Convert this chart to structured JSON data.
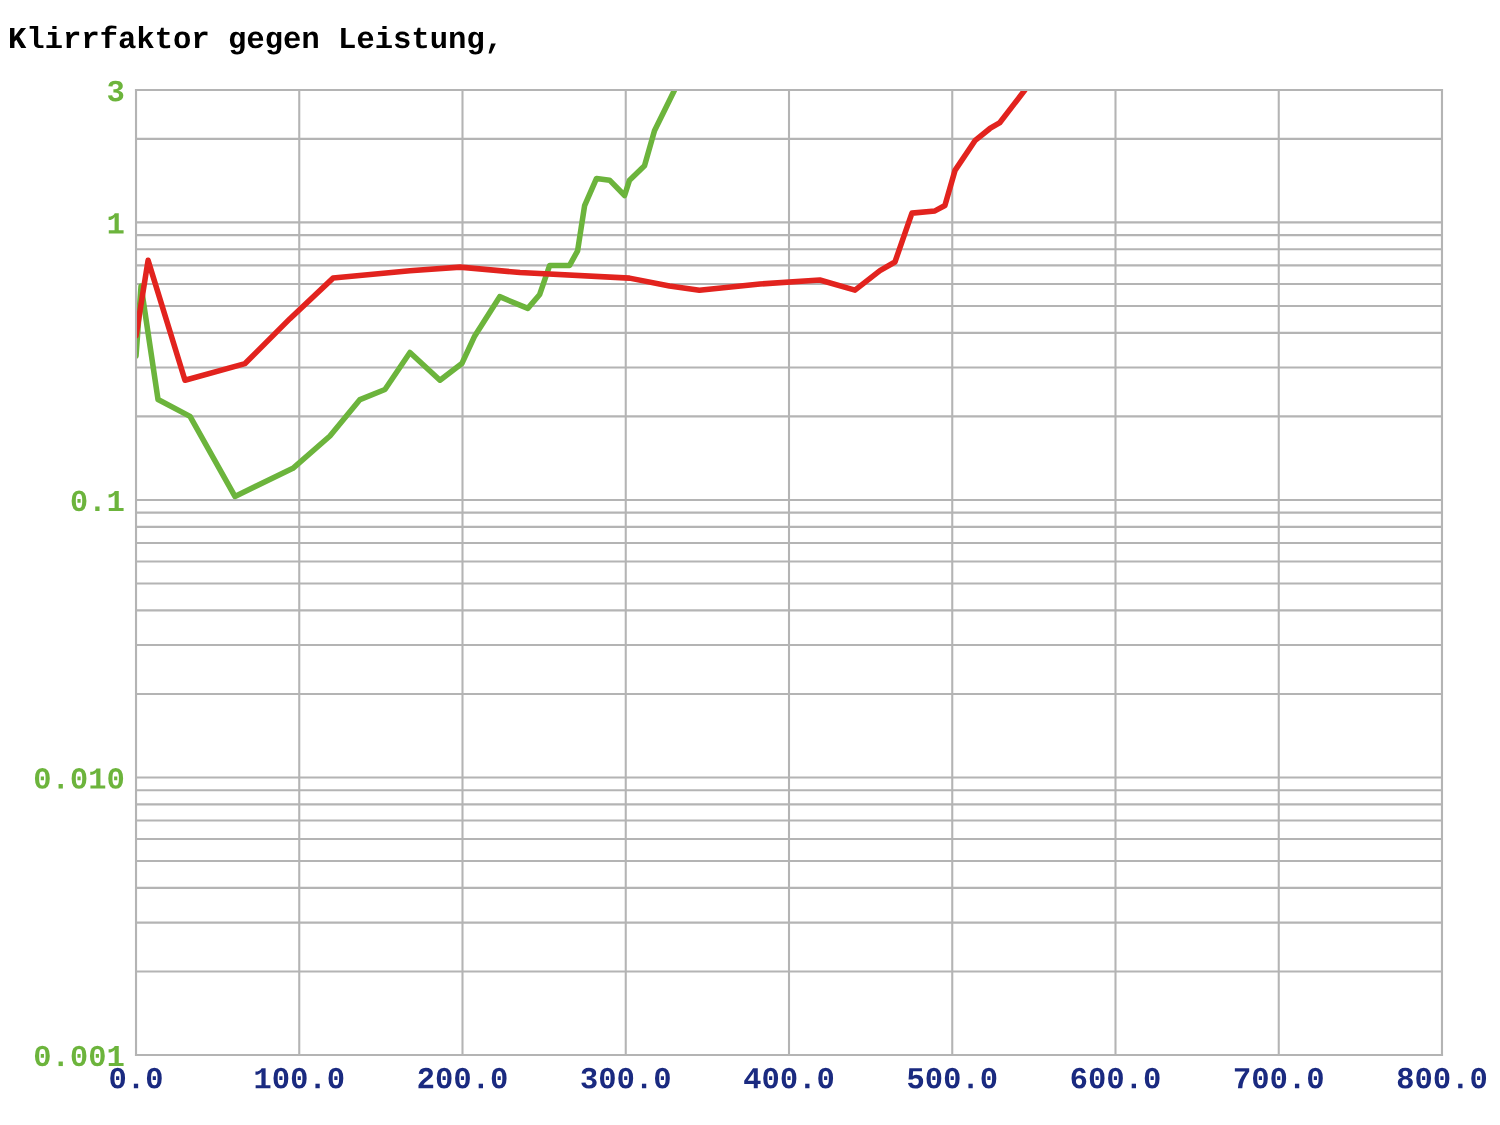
{
  "chart_data": {
    "type": "line",
    "title": "Klirrfaktor gegen Leistung,",
    "log": "y",
    "grid": true,
    "line_style": "solid",
    "marker": "none",
    "xlim": [
      0,
      800
    ],
    "xticks": [
      {
        "value": 0,
        "label": "0.0"
      },
      {
        "value": 100,
        "label": "100.0"
      },
      {
        "value": 200,
        "label": "200.0"
      },
      {
        "value": 300,
        "label": "300.0"
      },
      {
        "value": 400,
        "label": "400.0"
      },
      {
        "value": 500,
        "label": "500.0"
      },
      {
        "value": 600,
        "label": "600.0"
      },
      {
        "value": 700,
        "label": "700.0"
      },
      {
        "value": 800,
        "label": "800.0"
      }
    ],
    "ylim": [
      0.001,
      3
    ],
    "yticks": [
      0.001,
      {
        "value": 0.002,
        "label": null
      },
      {
        "value": 0.003,
        "label": null
      },
      {
        "value": 0.004,
        "label": null
      },
      {
        "value": 0.005,
        "label": null
      },
      {
        "value": 0.006,
        "label": null
      },
      {
        "value": 0.007,
        "label": null
      },
      {
        "value": 0.008,
        "label": null
      },
      {
        "value": 0.009,
        "label": null
      },
      {
        "value": 0.01,
        "label": "0.010"
      },
      {
        "value": 0.02,
        "label": null
      },
      {
        "value": 0.03,
        "label": null
      },
      {
        "value": 0.04,
        "label": null
      },
      {
        "value": 0.05,
        "label": null
      },
      {
        "value": 0.06,
        "label": null
      },
      {
        "value": 0.07,
        "label": null
      },
      {
        "value": 0.08,
        "label": null
      },
      {
        "value": 0.09,
        "label": null
      },
      0.1,
      {
        "value": 0.2,
        "label": null
      },
      {
        "value": 0.3,
        "label": null
      },
      {
        "value": 0.4,
        "label": null
      },
      {
        "value": 0.5,
        "label": null
      },
      {
        "value": 0.6,
        "label": null
      },
      {
        "value": 0.7,
        "label": null
      },
      {
        "value": 0.8,
        "label": null
      },
      {
        "value": 0.9,
        "label": null
      },
      1,
      {
        "value": 2,
        "label": null
      },
      3
    ],
    "series": [
      {
        "color": "#6cb43c",
        "x": [
          0,
          3.1,
          13.5,
          33.1,
          60.6,
          96.1,
          118.8,
          137.2,
          152.5,
          167.8,
          186.2,
          199.6,
          207.5,
          222.8,
          240,
          247.3,
          253.4,
          265.6,
          270.5,
          274.8,
          282.1,
          290.1,
          299.3,
          302.3,
          311.5,
          317.6,
          329.9
        ],
        "values": [
          0.33,
          0.59,
          0.23,
          0.2,
          0.103,
          0.13,
          0.17,
          0.23,
          0.25,
          0.34,
          0.27,
          0.31,
          0.39,
          0.54,
          0.49,
          0.55,
          0.7,
          0.7,
          0.79,
          1.15,
          1.44,
          1.42,
          1.25,
          1.42,
          1.6,
          2.14,
          3.0
        ]
      },
      {
        "color": "#e2231e",
        "x": [
          0,
          7.4,
          30,
          66.8,
          94.3,
          120.7,
          167.8,
          198.5,
          235.2,
          302.3,
          326.8,
          345.1,
          382.2,
          418.9,
          440.4,
          455.7,
          464.9,
          475.3,
          489.4,
          495.5,
          501.7,
          513.9,
          523.1,
          529.2,
          544.5
        ],
        "values": [
          0.39,
          0.73,
          0.27,
          0.31,
          0.45,
          0.63,
          0.67,
          0.69,
          0.66,
          0.63,
          0.59,
          0.57,
          0.6,
          0.62,
          0.57,
          0.67,
          0.72,
          1.08,
          1.1,
          1.15,
          1.54,
          1.97,
          2.18,
          2.29,
          3.0
        ]
      }
    ]
  }
}
